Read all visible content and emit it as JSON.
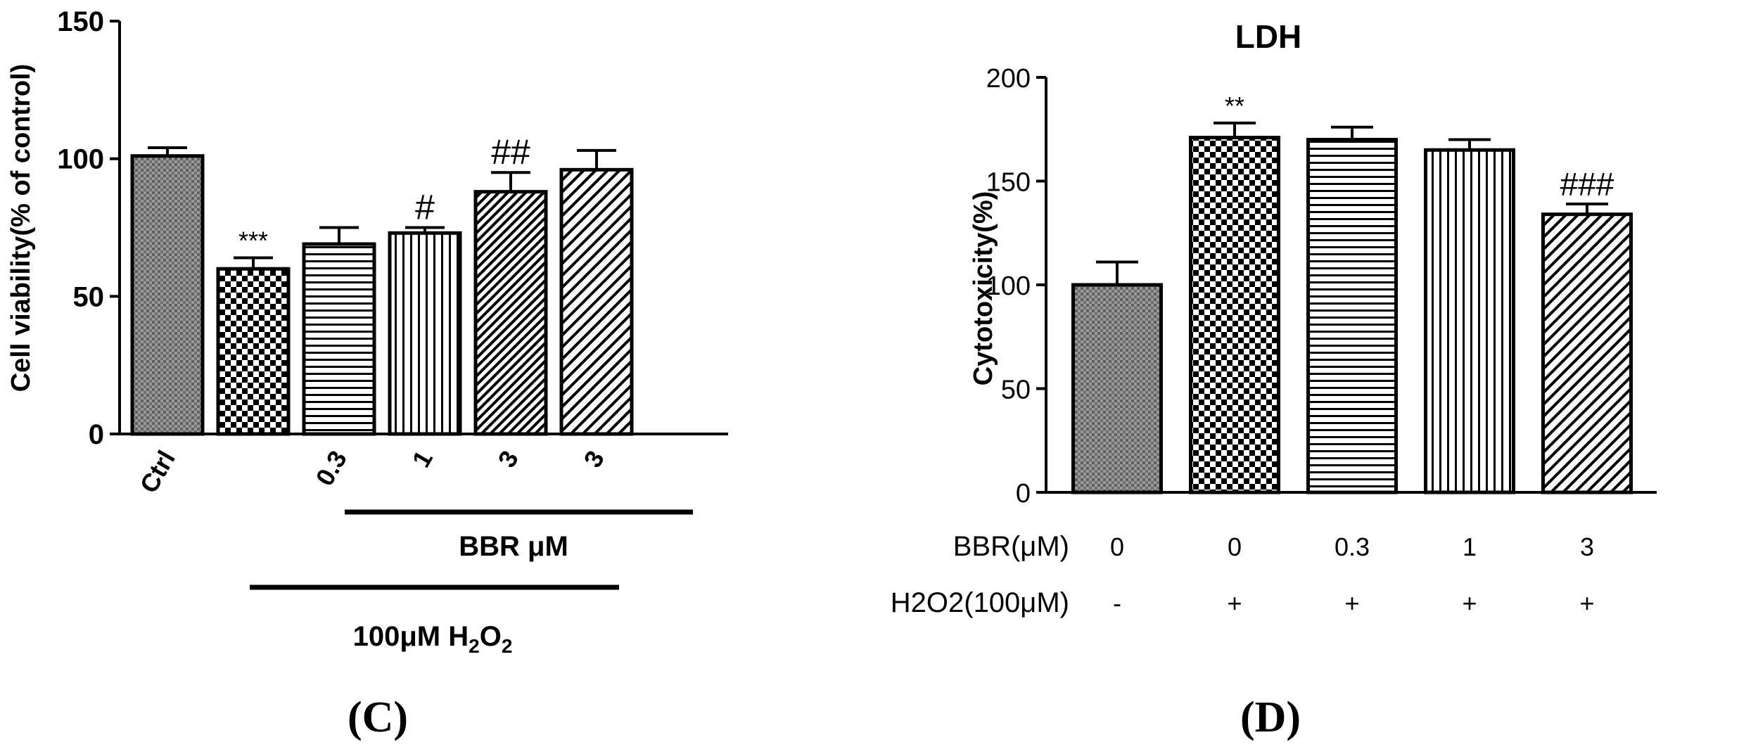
{
  "chart_data": [
    {
      "type": "bar",
      "panel_label": "(C)",
      "ylabel": "Cell viability(% of control)",
      "ylim": [
        0,
        150
      ],
      "yticks": [
        "0",
        "50",
        "100",
        "150"
      ],
      "categories": [
        "Ctrl",
        "",
        "0.3",
        "1",
        "3",
        "3"
      ],
      "values": [
        101,
        60,
        69,
        73,
        88,
        96
      ],
      "errors": [
        3,
        4,
        6,
        2,
        7,
        7
      ],
      "patterns": [
        "ctrl-crosshatch",
        "checker",
        "horizontal",
        "vertical",
        "diagonal-dense",
        "diagonal"
      ],
      "annotations": [
        "",
        "***",
        "",
        "#",
        "##",
        ""
      ],
      "group_labels": {
        "bbr": "BBR μM",
        "h2o2_prefix": "100μM H",
        "h2o2_sub1": "2",
        "h2o2_mid": "O",
        "h2o2_sub2": "2"
      }
    },
    {
      "type": "bar",
      "panel_label": "(D)",
      "title": "LDH",
      "ylabel": "Cytotoxicity(%)",
      "ylim": [
        0,
        200
      ],
      "yticks": [
        "0",
        "50",
        "100",
        "150",
        "200"
      ],
      "values": [
        100,
        171,
        170,
        165,
        134
      ],
      "errors": [
        11,
        7,
        6,
        5,
        5
      ],
      "patterns": [
        "ctrl-crosshatch",
        "checker",
        "horizontal",
        "vertical",
        "diagonal"
      ],
      "annotations": [
        "",
        "**",
        "",
        "",
        "###"
      ],
      "row_labels": {
        "bbr": "BBR(μM)",
        "h2o2": "H2O2(100μM)"
      },
      "bbr_values": [
        "0",
        "0",
        "0.3",
        "1",
        "3"
      ],
      "h2o2_values": [
        "-",
        "+",
        "+",
        "+",
        "+"
      ]
    }
  ]
}
